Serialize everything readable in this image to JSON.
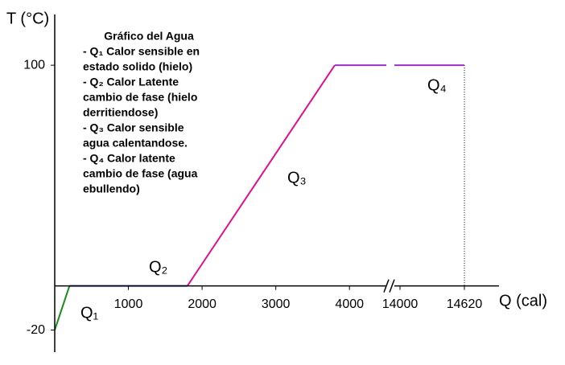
{
  "chart_data": {
    "type": "line",
    "ylabel": "T (°C)",
    "xlabel": "Q (cal)",
    "annotation_title": "Gráfico del Agua",
    "annotation_lines": [
      "- Q₁  Calor sensible en",
      "estado solido (hielo)",
      "- Q₂  Calor Latente",
      "cambio de fase (hielo",
      "derritiendose)",
      "- Q₃  Calor sensible",
      "agua calentandose.",
      "- Q₄  Calor latente",
      "cambio de fase (agua",
      "ebullendo)"
    ],
    "xlim": [
      0,
      14620
    ],
    "xticks": [
      1000,
      2000,
      3000,
      4000,
      14000,
      14620
    ],
    "x_axis_break": true,
    "ylim": [
      -30,
      123
    ],
    "yticks": [
      -20,
      100
    ],
    "series": [
      {
        "name": "Q₁",
        "color": "#1a8a1a",
        "x": [
          0,
          200
        ],
        "y": [
          -20,
          0
        ]
      },
      {
        "name": "Q₂",
        "color": "#2233cc",
        "x": [
          200,
          1800
        ],
        "y": [
          0,
          0
        ]
      },
      {
        "name": "Q₃",
        "color": "#dd1188",
        "x": [
          1800,
          3800
        ],
        "y": [
          0,
          100
        ]
      },
      {
        "name": "Q₄",
        "color": "#9933cc",
        "x": [
          3800,
          14620
        ],
        "y": [
          100,
          100
        ]
      }
    ]
  }
}
